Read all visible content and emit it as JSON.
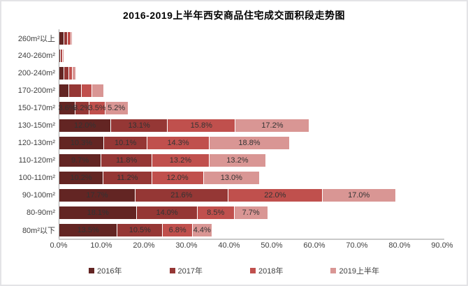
{
  "page": {
    "title": "2016-2019上半年西安商品住宅成交面积段走势图"
  },
  "chart_data": {
    "type": "bar",
    "orientation": "horizontal-stacked",
    "title": "2016-2019上半年西安商品住宅成交面积段走势图",
    "categories": [
      "260m²以上",
      "240-260m²",
      "200-240m²",
      "170-200m²",
      "150-170m²",
      "130-150m²",
      "120-130m²",
      "110-120m²",
      "100-110m²",
      "90-100m²",
      "80-90m²",
      "80m²以下"
    ],
    "series": [
      {
        "name": "2016年",
        "color": "#632523",
        "values": [
          1.0,
          0.1,
          1.0,
          2.2,
          3.6,
          12.0,
          10.3,
          9.7,
          10.2,
          17.7,
          18.1,
          13.5
        ]
      },
      {
        "name": "2017年",
        "color": "#953735",
        "values": [
          0.6,
          0.1,
          1.0,
          2.8,
          3.2,
          13.1,
          10.1,
          11.8,
          11.2,
          21.6,
          14.0,
          10.5
        ]
      },
      {
        "name": "2018年",
        "color": "#C0504D",
        "values": [
          0.7,
          0.2,
          0.7,
          2.2,
          3.5,
          15.8,
          14.3,
          13.2,
          12.0,
          22.0,
          8.5,
          6.8
        ]
      },
      {
        "name": "2019上半年",
        "color": "#D99694",
        "values": [
          0.2,
          0.1,
          0.5,
          2.6,
          5.2,
          17.2,
          18.8,
          13.2,
          13.0,
          17.0,
          7.7,
          4.4
        ]
      }
    ],
    "show_value_labels": [
      false,
      false,
      false,
      false,
      true,
      true,
      true,
      true,
      true,
      true,
      true,
      true
    ],
    "value_label_format": "{value}%",
    "x_ticks": [
      "0.0%",
      "10.0%",
      "20.0%",
      "30.0%",
      "40.0%",
      "50.0%",
      "60.0%",
      "70.0%",
      "80.0%",
      "90.0%"
    ],
    "xlim": [
      0,
      90
    ],
    "xlabel": "",
    "ylabel": "",
    "grid": false,
    "legend_position": "bottom",
    "axis_color": "#a6a6a6",
    "label_text_color": "#404040"
  }
}
